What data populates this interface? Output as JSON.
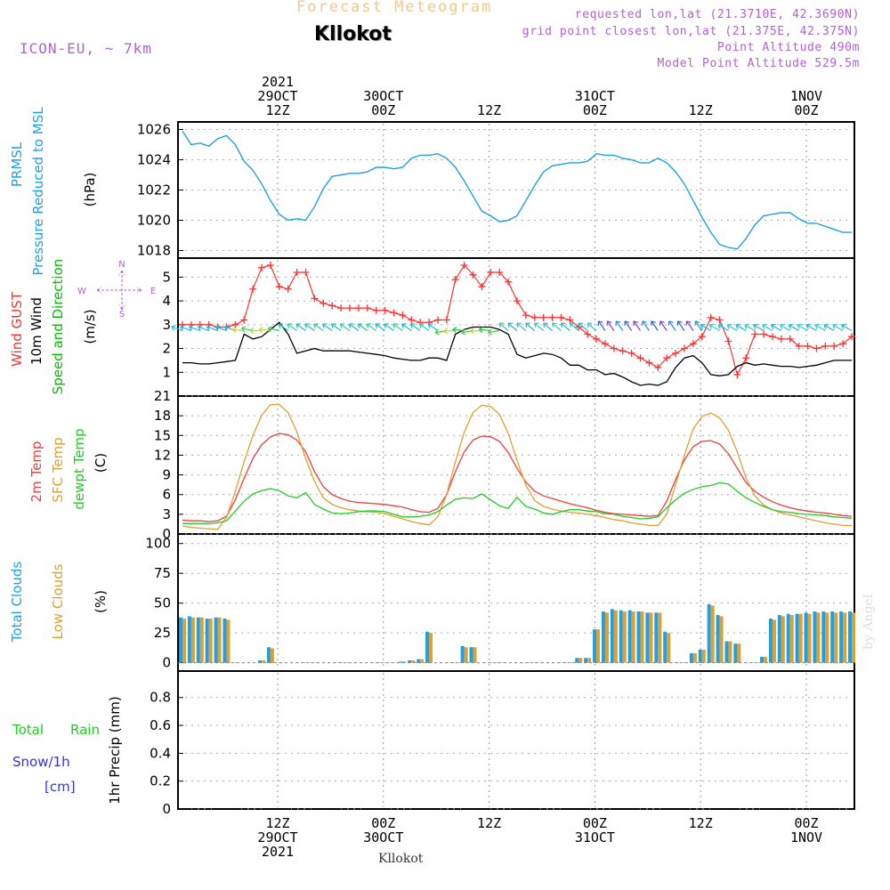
{
  "header": {
    "title_top": "Forecast Meteogram",
    "location": "Kllokot",
    "model": "ICON-EU, ~ 7km",
    "requested": "requested lon,lat (21.3710E, 42.3690N)",
    "grid_point": "grid point closest lon,lat (21.375E, 42.375N)",
    "point_alt": "Point Altitude 490m",
    "model_alt": "Model Point Altitude 529.5m",
    "footer_location": "Kllokot",
    "credit": "by Angel"
  },
  "colors": {
    "pressure": "#1ea0e6",
    "gust": "#ff3030",
    "wind": "#000000",
    "dir": "#00c000",
    "temp2m": "#f03c3c",
    "sfc": "#e0a030",
    "dewpt": "#22cc22",
    "total_clouds": "#1ea0e6",
    "low_clouds": "#e0a030",
    "rain": "#22cc22",
    "snow": "#3333dd",
    "header_purple": "#b060d8",
    "title_top": "#f0c890"
  },
  "time_axis": {
    "top_labels": [
      {
        "t": 11,
        "lines": [
          "2021",
          "29OCT",
          "12Z"
        ]
      },
      {
        "t": 23,
        "lines": [
          "30OCT",
          "00Z"
        ]
      },
      {
        "t": 35,
        "lines": [
          "12Z"
        ]
      },
      {
        "t": 47,
        "lines": [
          "31OCT",
          "00Z"
        ]
      },
      {
        "t": 59,
        "lines": [
          "12Z"
        ]
      },
      {
        "t": 71,
        "lines": [
          "1NOV",
          "00Z"
        ]
      }
    ],
    "bottom_labels": [
      {
        "t": 11,
        "lines": [
          "12Z",
          "29OCT",
          "2021"
        ]
      },
      {
        "t": 23,
        "lines": [
          "00Z",
          "30OCT"
        ]
      },
      {
        "t": 35,
        "lines": [
          "12Z"
        ]
      },
      {
        "t": 47,
        "lines": [
          "00Z",
          "31OCT"
        ]
      },
      {
        "t": 59,
        "lines": [
          "12Z"
        ]
      },
      {
        "t": 71,
        "lines": [
          "00Z",
          "1NOV"
        ]
      }
    ]
  },
  "panels": {
    "pressure": {
      "labels": [
        "PRMSL",
        "Pressure Reduced to MSL",
        "(hPa)"
      ]
    },
    "wind": {
      "labels": [
        "Wind GUST",
        "10m Wind",
        "Speed and Direction",
        "(m/s)"
      ],
      "compass": [
        "N",
        "W",
        "E",
        "S"
      ]
    },
    "temp": {
      "labels": [
        "2m Temp",
        "SFC Temp",
        "dewpt Temp",
        "(C)"
      ]
    },
    "clouds": {
      "labels": [
        "Total Clouds",
        "Low Clouds",
        "(%)"
      ]
    },
    "precip": {
      "labels": [
        "Total",
        "Rain",
        "Snow/1h",
        "[cm]",
        "1hr Precip (mm)"
      ]
    }
  },
  "chart_data": [
    {
      "type": "line",
      "title": "PRMSL Pressure Reduced to MSL",
      "ylabel": "(hPa)",
      "ylim": [
        1017.5,
        1026.5
      ],
      "yticks": [
        1018,
        1020,
        1022,
        1024,
        1026
      ],
      "x": [
        0,
        1,
        2,
        3,
        4,
        5,
        6,
        7,
        8,
        9,
        10,
        11,
        12,
        13,
        14,
        15,
        16,
        17,
        18,
        19,
        20,
        21,
        22,
        23,
        24,
        25,
        26,
        27,
        28,
        29,
        30,
        31,
        32,
        33,
        34,
        35,
        36,
        37,
        38,
        39,
        40,
        41,
        42,
        43,
        44,
        45,
        46,
        47,
        48,
        49,
        50,
        51,
        52,
        53,
        54,
        55,
        56,
        57,
        58,
        59,
        60,
        61,
        62,
        63,
        64,
        65,
        66,
        67,
        68,
        69,
        70,
        71,
        72,
        73,
        74,
        75,
        76
      ],
      "series": [
        {
          "values": [
            1025.9,
            1025.0,
            1025.1,
            1024.9,
            1025.4,
            1025.6,
            1025.0,
            1023.9,
            1023.3,
            1022.4,
            1021.3,
            1020.4,
            1020.0,
            1020.1,
            1020.0,
            1020.9,
            1022.1,
            1022.9,
            1023.0,
            1023.1,
            1023.1,
            1023.2,
            1023.5,
            1023.5,
            1023.4,
            1023.5,
            1024.1,
            1024.3,
            1024.3,
            1024.4,
            1024.1,
            1023.5,
            1022.6,
            1021.6,
            1020.6,
            1020.3,
            1019.9,
            1020.0,
            1020.3,
            1021.3,
            1022.3,
            1023.2,
            1023.6,
            1023.7,
            1023.8,
            1023.8,
            1023.9,
            1024.4,
            1024.3,
            1024.3,
            1024.1,
            1024.0,
            1023.8,
            1023.8,
            1024.1,
            1023.8,
            1023.2,
            1022.4,
            1021.3,
            1020.2,
            1019.2,
            1018.4,
            1018.2,
            1018.1,
            1018.8,
            1019.7,
            1020.3,
            1020.4,
            1020.5,
            1020.5,
            1020.1,
            1019.8,
            1019.8,
            1019.6,
            1019.4,
            1019.2,
            1019.2
          ]
        }
      ]
    },
    {
      "type": "line",
      "title": "Wind GUST / 10m Wind Speed and Direction",
      "ylabel": "(m/s)",
      "ylim": [
        0,
        5.8
      ],
      "yticks": [
        1,
        2,
        3,
        4,
        5
      ],
      "x": [
        0,
        1,
        2,
        3,
        4,
        5,
        6,
        7,
        8,
        9,
        10,
        11,
        12,
        13,
        14,
        15,
        16,
        17,
        18,
        19,
        20,
        21,
        22,
        23,
        24,
        25,
        26,
        27,
        28,
        29,
        30,
        31,
        32,
        33,
        34,
        35,
        36,
        37,
        38,
        39,
        40,
        41,
        42,
        43,
        44,
        45,
        46,
        47,
        48,
        49,
        50,
        51,
        52,
        53,
        54,
        55,
        56,
        57,
        58,
        59,
        60,
        61,
        62,
        63,
        64,
        65,
        66,
        67,
        68,
        69,
        70,
        71,
        72,
        73,
        74,
        75,
        76
      ],
      "series": [
        {
          "name": "Wind GUST",
          "values": [
            3.0,
            3.0,
            3.0,
            3.0,
            2.9,
            2.9,
            3.0,
            3.2,
            4.5,
            5.4,
            5.5,
            4.6,
            4.5,
            5.2,
            5.2,
            4.1,
            3.9,
            3.8,
            3.7,
            3.7,
            3.7,
            3.7,
            3.6,
            3.6,
            3.5,
            3.4,
            3.2,
            3.1,
            3.1,
            3.2,
            3.2,
            4.9,
            5.5,
            5.1,
            4.6,
            5.2,
            5.2,
            4.8,
            4.0,
            3.4,
            3.3,
            3.3,
            3.3,
            3.3,
            3.2,
            2.9,
            2.6,
            2.4,
            2.2,
            2.0,
            1.9,
            1.8,
            1.6,
            1.4,
            1.2,
            1.6,
            1.8,
            2.0,
            2.2,
            2.5,
            3.3,
            3.2,
            2.3,
            0.9,
            1.6,
            2.6,
            2.6,
            2.5,
            2.4,
            2.4,
            2.1,
            2.1,
            2.0,
            2.1,
            2.1,
            2.2,
            2.5
          ]
        },
        {
          "name": "10m Wind",
          "values": [
            1.4,
            1.4,
            1.35,
            1.35,
            1.4,
            1.45,
            1.5,
            2.6,
            2.4,
            2.5,
            2.8,
            3.1,
            2.6,
            1.8,
            1.9,
            2.0,
            1.9,
            1.9,
            1.9,
            1.9,
            1.85,
            1.8,
            1.75,
            1.7,
            1.6,
            1.55,
            1.5,
            1.5,
            1.6,
            1.6,
            1.5,
            2.6,
            2.8,
            2.9,
            2.9,
            2.9,
            2.8,
            2.6,
            1.75,
            1.6,
            1.7,
            1.8,
            1.75,
            1.6,
            1.3,
            1.3,
            1.1,
            1.1,
            0.9,
            0.95,
            0.8,
            0.6,
            0.45,
            0.5,
            0.45,
            0.6,
            1.2,
            1.6,
            1.7,
            1.4,
            0.9,
            0.85,
            0.9,
            1.25,
            1.4,
            1.3,
            1.35,
            1.3,
            1.25,
            1.25,
            1.2,
            1.25,
            1.3,
            1.4,
            1.5,
            1.5,
            1.5
          ]
        }
      ]
    },
    {
      "type": "line",
      "title": "2m Temp / SFC Temp / dewpt Temp",
      "ylabel": "(C)",
      "ylim": [
        0,
        21
      ],
      "yticks": [
        0,
        3,
        6,
        9,
        12,
        15,
        18,
        21
      ],
      "x": [
        0,
        1,
        2,
        3,
        4,
        5,
        6,
        7,
        8,
        9,
        10,
        11,
        12,
        13,
        14,
        15,
        16,
        17,
        18,
        19,
        20,
        21,
        22,
        23,
        24,
        25,
        26,
        27,
        28,
        29,
        30,
        31,
        32,
        33,
        34,
        35,
        36,
        37,
        38,
        39,
        40,
        41,
        42,
        43,
        44,
        45,
        46,
        47,
        48,
        49,
        50,
        51,
        52,
        53,
        54,
        55,
        56,
        57,
        58,
        59,
        60,
        61,
        62,
        63,
        64,
        65,
        66,
        67,
        68,
        69,
        70,
        71,
        72,
        73,
        74,
        75,
        76
      ],
      "series": [
        {
          "name": "2m Temp",
          "values": [
            2.1,
            2.0,
            2.0,
            1.9,
            2.0,
            2.7,
            5.2,
            8.5,
            11.5,
            13.6,
            14.8,
            15.3,
            15.1,
            14.3,
            12.5,
            9.5,
            7.2,
            6.0,
            5.4,
            5.0,
            4.8,
            4.7,
            4.6,
            4.5,
            4.3,
            4.1,
            3.7,
            3.4,
            3.3,
            3.9,
            6.0,
            9.5,
            12.5,
            14.3,
            14.9,
            14.8,
            14.1,
            12.4,
            10.0,
            7.9,
            6.5,
            5.8,
            5.4,
            5.0,
            4.6,
            4.3,
            4.0,
            3.6,
            3.3,
            3.1,
            3.0,
            2.9,
            2.8,
            2.7,
            2.8,
            5.0,
            8.3,
            11.3,
            13.3,
            14.1,
            14.2,
            13.7,
            12.2,
            10.0,
            7.8,
            6.5,
            5.6,
            4.9,
            4.4,
            4.0,
            3.7,
            3.5,
            3.3,
            3.2,
            3.0,
            2.8,
            2.7
          ]
        },
        {
          "name": "SFC Temp",
          "values": [
            1.2,
            1.0,
            0.9,
            0.8,
            0.7,
            2.5,
            6.5,
            11.0,
            15.0,
            18.1,
            19.7,
            19.7,
            18.5,
            15.5,
            11.5,
            8.0,
            5.5,
            4.5,
            4.0,
            3.7,
            3.5,
            3.4,
            3.3,
            3.1,
            2.7,
            2.3,
            1.9,
            1.6,
            1.4,
            2.6,
            6.0,
            11.0,
            15.5,
            18.5,
            19.6,
            19.4,
            18.2,
            15.3,
            11.2,
            7.4,
            5.1,
            4.2,
            3.8,
            3.5,
            3.3,
            3.2,
            3.0,
            2.8,
            2.5,
            2.2,
            2.0,
            1.7,
            1.5,
            1.3,
            1.3,
            3.0,
            7.5,
            12.0,
            16.0,
            17.9,
            18.4,
            17.7,
            15.8,
            12.5,
            8.5,
            5.8,
            4.4,
            3.7,
            3.2,
            2.9,
            2.6,
            2.3,
            2.0,
            1.7,
            1.5,
            1.3,
            1.3
          ]
        },
        {
          "name": "dewpt Temp",
          "values": [
            1.6,
            1.6,
            1.6,
            1.6,
            1.7,
            2.0,
            3.5,
            5.0,
            6.1,
            6.6,
            6.9,
            6.6,
            5.8,
            5.5,
            6.3,
            4.5,
            3.8,
            3.2,
            3.1,
            3.2,
            3.4,
            3.5,
            3.5,
            3.4,
            3.0,
            2.6,
            2.6,
            2.7,
            2.9,
            3.4,
            4.4,
            5.3,
            5.5,
            5.4,
            6.1,
            5.2,
            4.3,
            3.9,
            5.6,
            4.2,
            3.8,
            3.2,
            3.0,
            3.4,
            3.7,
            3.7,
            3.5,
            3.4,
            3.1,
            3.0,
            2.7,
            2.5,
            2.3,
            2.4,
            2.6,
            4.0,
            5.2,
            6.2,
            6.8,
            7.2,
            7.4,
            7.8,
            7.6,
            6.5,
            5.5,
            4.8,
            4.2,
            3.7,
            3.4,
            3.3,
            3.1,
            3.0,
            2.9,
            2.8,
            2.6,
            2.5,
            2.4
          ]
        }
      ]
    },
    {
      "type": "bar",
      "title": "Total Clouds / Low Clouds",
      "ylabel": "(%)",
      "ylim": [
        -7,
        108
      ],
      "yticks": [
        0,
        25,
        50,
        75,
        100
      ],
      "x": [
        0,
        1,
        2,
        3,
        4,
        5,
        6,
        7,
        8,
        9,
        10,
        11,
        12,
        13,
        14,
        15,
        16,
        17,
        18,
        19,
        20,
        21,
        22,
        23,
        24,
        25,
        26,
        27,
        28,
        29,
        30,
        31,
        32,
        33,
        34,
        35,
        36,
        37,
        38,
        39,
        40,
        41,
        42,
        43,
        44,
        45,
        46,
        47,
        48,
        49,
        50,
        51,
        52,
        53,
        54,
        55,
        56,
        57,
        58,
        59,
        60,
        61,
        62,
        63,
        64,
        65,
        66,
        67,
        68,
        69,
        70,
        71,
        72,
        73,
        74,
        75,
        76
      ],
      "series": [
        {
          "name": "Total Clouds",
          "values": [
            38,
            39,
            38,
            37,
            38,
            37,
            0,
            0,
            0,
            2,
            13,
            0,
            0,
            0,
            0,
            0,
            0,
            0,
            0,
            0,
            0,
            0,
            0,
            0,
            0,
            1,
            2,
            3,
            26,
            0,
            0,
            0,
            14,
            13,
            0,
            0,
            0,
            0,
            0,
            0,
            0,
            0,
            0,
            0,
            0,
            4,
            4,
            28,
            43,
            45,
            44,
            44,
            43,
            42,
            42,
            26,
            0,
            0,
            8,
            11,
            49,
            40,
            18,
            16,
            0,
            0,
            5,
            37,
            40,
            41,
            41,
            42,
            43,
            43,
            43,
            43,
            43
          ]
        },
        {
          "name": "Low Clouds",
          "values": [
            37,
            38,
            38,
            37,
            38,
            36,
            0,
            0,
            0,
            2,
            12,
            0,
            0,
            0,
            0,
            0,
            0,
            0,
            0,
            0,
            0,
            0,
            0,
            0,
            0,
            1,
            2,
            3,
            25,
            0,
            0,
            0,
            13,
            13,
            0,
            0,
            0,
            0,
            0,
            0,
            0,
            0,
            0,
            0,
            0,
            4,
            4,
            28,
            42,
            44,
            43,
            43,
            43,
            42,
            42,
            25,
            0,
            0,
            8,
            11,
            48,
            39,
            18,
            16,
            0,
            0,
            5,
            36,
            39,
            40,
            41,
            41,
            42,
            42,
            42,
            42,
            42
          ]
        }
      ]
    },
    {
      "type": "bar",
      "title": "Total Rain / Snow",
      "ylabel": "1hr Precip (mm)",
      "ylim": [
        0,
        0.99
      ],
      "yticks": [
        0,
        0.2,
        0.4,
        0.6,
        0.8
      ],
      "series": [
        {
          "name": "Total Rain",
          "values": []
        }
      ]
    }
  ]
}
